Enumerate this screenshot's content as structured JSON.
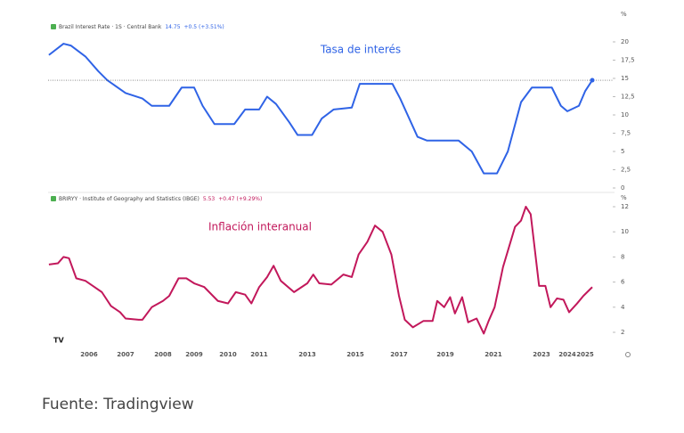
{
  "chart_data": [
    {
      "type": "line",
      "title": "Brazil Interest Rate · 1S · Central Bank",
      "legend_value": "14.75",
      "legend_change": "+0.5 (+3.51%)",
      "annotation": "Tasa de interés",
      "y_unit": "%",
      "series": [
        {
          "name": "Tasa de interés",
          "color": "#2f63e6",
          "x": [
            2004.9,
            2005.3,
            2005.5,
            2005.9,
            2006.25,
            2006.5,
            2007,
            2007.45,
            2007.7,
            2008.2,
            2008.6,
            2009,
            2009.25,
            2009.6,
            2010.2,
            2010.55,
            2011,
            2011.33,
            2011.7,
            2012.25,
            2012.6,
            2013.2,
            2013.6,
            2014.1,
            2014.85,
            2015.2,
            2016.7,
            2017.05,
            2017.8,
            2018.2,
            2019.55,
            2020.1,
            2020.6,
            2021.15,
            2021.6,
            2022.15,
            2022.6,
            2023.4,
            2023.75,
            2024,
            2024.65,
            2025,
            2025.4
          ],
          "values": [
            18.2,
            19.75,
            19.5,
            18,
            16,
            14.75,
            13,
            12.25,
            11.25,
            11.25,
            13.75,
            13.75,
            11.25,
            8.75,
            8.75,
            10.75,
            10.75,
            12.5,
            11.5,
            9,
            7.25,
            7.25,
            9.5,
            10.75,
            11,
            14.25,
            14.25,
            12.25,
            7,
            6.5,
            6.5,
            5,
            2,
            2,
            5,
            11.75,
            13.75,
            13.75,
            11.25,
            10.5,
            11.25,
            13.25,
            14.75
          ]
        }
      ],
      "xlim": [
        2004.9,
        2026.1
      ],
      "ylim": [
        0,
        20
      ],
      "yticks": [
        0,
        {
          "value": 2.5,
          "label": "2,5"
        },
        5,
        {
          "value": 7.5,
          "label": "7,5"
        },
        10,
        {
          "value": 12.5,
          "label": "12,5"
        },
        15,
        {
          "value": 17.5,
          "label": "17,5"
        },
        20
      ]
    },
    {
      "type": "line",
      "title": "BRIRYY · Institute of Geography and Statistics (IBGE)",
      "legend_value": "5.53",
      "legend_change": "+0.47 (+9.29%)",
      "annotation": "Inflación interanual",
      "y_unit": "%",
      "series": [
        {
          "name": "Inflación interanual",
          "color": "#c2185b",
          "x": [
            2004.9,
            2005.15,
            2005.3,
            2005.45,
            2005.65,
            2005.9,
            2006.1,
            2006.35,
            2006.6,
            2006.85,
            2007,
            2007.35,
            2007.45,
            2007.7,
            2008,
            2008.2,
            2008.5,
            2008.75,
            2009,
            2009.3,
            2009.7,
            2010,
            2010.25,
            2010.55,
            2010.75,
            2011,
            2011.33,
            2011.6,
            2011.9,
            2012.45,
            2013,
            2013.25,
            2013.5,
            2014,
            2014.5,
            2014.85,
            2015.15,
            2015.55,
            2015.9,
            2016.25,
            2016.65,
            2017,
            2017.25,
            2017.6,
            2018.05,
            2018.45,
            2018.65,
            2018.95,
            2019.2,
            2019.4,
            2019.7,
            2019.95,
            2020.3,
            2020.6,
            2020.8,
            2021.05,
            2021.4,
            2021.9,
            2022.15,
            2022.35,
            2022.55,
            2022.9,
            2023.15,
            2023.35,
            2023.6,
            2023.85,
            2024.1,
            2024.55,
            2024.9,
            2025.4
          ],
          "values": [
            7.4,
            7.5,
            8.0,
            7.9,
            6.3,
            6.1,
            5.7,
            5.2,
            4.1,
            3.6,
            3.1,
            3.0,
            3.0,
            4.0,
            4.5,
            4.9,
            6.3,
            6.3,
            5.9,
            5.6,
            4.5,
            4.3,
            5.2,
            5.0,
            4.3,
            5.6,
            6.4,
            7.3,
            6.1,
            5.2,
            5.9,
            6.6,
            5.9,
            5.8,
            6.6,
            6.4,
            8.2,
            9.2,
            10.5,
            10.0,
            8.2,
            4.9,
            3.0,
            2.4,
            2.9,
            2.9,
            4.5,
            4.0,
            4.8,
            3.5,
            4.8,
            2.8,
            3.1,
            1.9,
            2.9,
            4.0,
            7.2,
            10.4,
            10.9,
            12.0,
            11.4,
            5.7,
            5.7,
            4.0,
            4.7,
            4.6,
            3.6,
            4.3,
            4.9,
            5.6
          ]
        }
      ],
      "xlim": [
        2004.9,
        2026.1
      ],
      "ylim": [
        2,
        12
      ],
      "yticks": [
        2,
        4,
        6,
        8,
        10,
        12
      ],
      "xticks": [
        2006,
        2007,
        2008,
        2009,
        2010,
        2011,
        2013,
        2015,
        2017,
        2019,
        2021,
        2023,
        2024,
        2025
      ]
    }
  ],
  "source": "Fuente: Tradingview"
}
